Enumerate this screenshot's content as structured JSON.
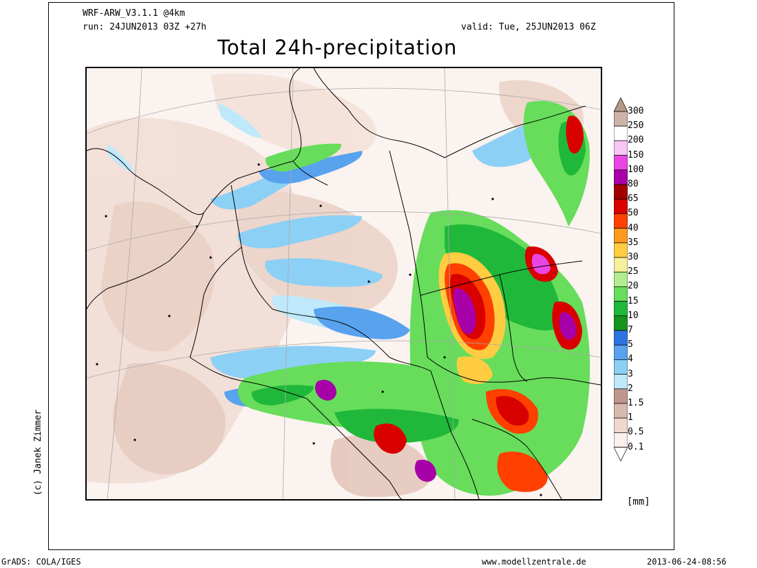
{
  "header": {
    "model": "WRF-ARW_V3.1.1 @4km",
    "run": "run: 24JUN2013 03Z +27h",
    "valid": "valid: Tue, 25JUN2013 06Z",
    "title": "Total 24h-precipitation"
  },
  "copyright": "(c) Janek Zimmer",
  "colorbar": {
    "unit": "[mm]",
    "levels": [
      {
        "label": "300",
        "color": "#b49888"
      },
      {
        "label": "250",
        "color": "#cdb3a7"
      },
      {
        "label": "200",
        "color": "#ffffff"
      },
      {
        "label": "150",
        "color": "#f7c7f4"
      },
      {
        "label": "100",
        "color": "#e845e3"
      },
      {
        "label": "80",
        "color": "#a800a8"
      },
      {
        "label": "65",
        "color": "#a30000"
      },
      {
        "label": "50",
        "color": "#d90000"
      },
      {
        "label": "40",
        "color": "#ff4000"
      },
      {
        "label": "35",
        "color": "#ff9a1f"
      },
      {
        "label": "30",
        "color": "#ffcc42"
      },
      {
        "label": "25",
        "color": "#f6f09c"
      },
      {
        "label": "20",
        "color": "#b2ee90"
      },
      {
        "label": "15",
        "color": "#67dd5b"
      },
      {
        "label": "10",
        "color": "#20b83a"
      },
      {
        "label": "7",
        "color": "#15941e"
      },
      {
        "label": "5",
        "color": "#2e74e0"
      },
      {
        "label": "4",
        "color": "#58a2ee"
      },
      {
        "label": "3",
        "color": "#8cd0f5"
      },
      {
        "label": "2",
        "color": "#bfe9fb"
      },
      {
        "label": "1.5",
        "color": "#bf978c"
      },
      {
        "label": "1",
        "color": "#d8b9ae"
      },
      {
        "label": "0.5",
        "color": "#eed8cf"
      },
      {
        "label": "0.1",
        "color": "#fbf0ec"
      }
    ]
  },
  "footer": {
    "left": "GrADS: COLA/IGES",
    "center": "www.modellzentrale.de",
    "right": "2013-06-24-08:56"
  },
  "colors": {
    "frame": "#000000",
    "map_background": "#fbf3ef",
    "border_line": "#000000",
    "grid_line": "#9a9a9a"
  }
}
